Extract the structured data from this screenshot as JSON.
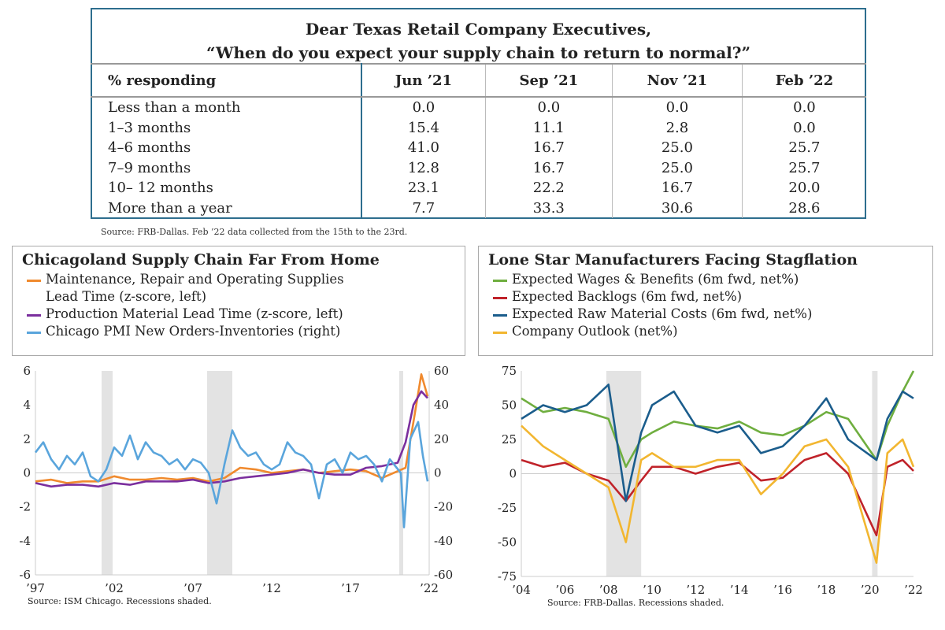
{
  "table": {
    "title_line1": "Dear Texas Retail Company Executives,",
    "title_line2": "“When do you expect your supply chain to return to normal?”",
    "header": [
      "% responding",
      "Jun ’21",
      "Sep ’21",
      "Nov ’21",
      "Feb ’22"
    ],
    "rows": [
      [
        "Less than a month",
        "0.0",
        "0.0",
        "0.0",
        "0.0"
      ],
      [
        "1–3 months",
        "15.4",
        "11.1",
        "2.8",
        "0.0"
      ],
      [
        "4–6 months",
        "41.0",
        "16.7",
        "25.0",
        "25.7"
      ],
      [
        "7–9 months",
        "12.8",
        "16.7",
        "25.0",
        "25.7"
      ],
      [
        "10– 12 months",
        "23.1",
        "22.2",
        "16.7",
        "20.0"
      ],
      [
        "More than a year",
        "7.7",
        "33.3",
        "30.6",
        "28.6"
      ]
    ],
    "source": "Source: FRB-Dallas. Feb ’22 data collected from the 15th to the 23rd."
  },
  "chart_data": [
    {
      "type": "line",
      "title": "Chicagoland Supply Chain Far From Home",
      "source": "Source: ISM Chicago. Recessions shaded.",
      "xlim": [
        1997,
        2022
      ],
      "xticks": [
        1997,
        2002,
        2007,
        2012,
        2017,
        2022
      ],
      "xtick_labels": [
        "’97",
        "’02",
        "’07",
        "’12",
        "’17",
        "’22"
      ],
      "ylim_left": [
        -6,
        6
      ],
      "yticks_left": [
        "6",
        "4",
        "2",
        "0",
        "-2",
        "-4",
        "-6"
      ],
      "ylim_right": [
        -60,
        60
      ],
      "yticks_right": [
        "60",
        "40",
        "20",
        "0",
        "-20",
        "-40",
        "-60"
      ],
      "recessions": [
        [
          2001.2,
          2001.9
        ],
        [
          2007.9,
          2009.5
        ],
        [
          2020.1,
          2020.35
        ]
      ],
      "series": [
        {
          "name": "Maintenance, Repair and Operating Supplies",
          "name2": "Lead Time (z-score, left)",
          "color": "#f08a2e",
          "axis": "left",
          "x": [
            1997,
            1998,
            1999,
            2000,
            2001,
            2002,
            2003,
            2004,
            2005,
            2006,
            2007,
            2008,
            2009,
            2010,
            2011,
            2012,
            2013,
            2014,
            2015,
            2016,
            2017,
            2018,
            2019,
            2020,
            2020.5,
            2021,
            2021.5,
            2021.9
          ],
          "y": [
            -0.5,
            -0.4,
            -0.6,
            -0.5,
            -0.5,
            -0.2,
            -0.4,
            -0.4,
            -0.3,
            -0.4,
            -0.3,
            -0.5,
            -0.3,
            0.3,
            0.2,
            0,
            0.1,
            0.2,
            0,
            0.1,
            0.2,
            0.1,
            -0.3,
            0.1,
            0.3,
            3,
            5.8,
            4.5
          ]
        },
        {
          "name": "Production Material Lead Time (z-score, left)",
          "color": "#7b2f9e",
          "axis": "left",
          "x": [
            1997,
            1998,
            1999,
            2000,
            2001,
            2002,
            2003,
            2004,
            2005,
            2006,
            2007,
            2008,
            2009,
            2010,
            2011,
            2012,
            2013,
            2014,
            2015,
            2016,
            2017,
            2018,
            2019,
            2020,
            2020.5,
            2021,
            2021.5,
            2021.9
          ],
          "y": [
            -0.6,
            -0.8,
            -0.7,
            -0.7,
            -0.8,
            -0.6,
            -0.7,
            -0.5,
            -0.5,
            -0.5,
            -0.4,
            -0.6,
            -0.5,
            -0.3,
            -0.2,
            -0.1,
            0,
            0.2,
            0,
            -0.1,
            -0.1,
            0.3,
            0.4,
            0.6,
            1.8,
            4,
            4.8,
            4.4
          ]
        },
        {
          "name": "Chicago PMI New Orders-Inventories (right)",
          "color": "#5aa5dc",
          "axis": "right",
          "x": [
            1997,
            1997.5,
            1998,
            1998.5,
            1999,
            1999.5,
            2000,
            2000.5,
            2001,
            2001.5,
            2002,
            2002.5,
            2003,
            2003.5,
            2004,
            2004.5,
            2005,
            2005.5,
            2006,
            2006.5,
            2007,
            2007.5,
            2008,
            2008.5,
            2009,
            2009.5,
            2010,
            2010.5,
            2011,
            2011.5,
            2012,
            2012.5,
            2013,
            2013.5,
            2014,
            2014.5,
            2015,
            2015.5,
            2016,
            2016.5,
            2017,
            2017.5,
            2018,
            2018.5,
            2019,
            2019.5,
            2020.2,
            2020.4,
            2020.8,
            2021.3,
            2021.6,
            2021.9
          ],
          "y": [
            12,
            18,
            8,
            2,
            10,
            5,
            12,
            -2,
            -5,
            2,
            15,
            10,
            22,
            8,
            18,
            12,
            10,
            5,
            8,
            2,
            8,
            6,
            0,
            -18,
            5,
            25,
            15,
            10,
            12,
            5,
            2,
            5,
            18,
            12,
            10,
            5,
            -15,
            5,
            8,
            0,
            12,
            8,
            10,
            5,
            -5,
            8,
            0,
            -32,
            20,
            30,
            10,
            -5
          ]
        }
      ]
    },
    {
      "type": "line",
      "title": "Lone Star Manufacturers Facing Stagflation",
      "source": "Source: FRB-Dallas. Recessions shaded.",
      "xlim": [
        2004,
        2022
      ],
      "xticks": [
        2004,
        2006,
        2008,
        2010,
        2012,
        2014,
        2016,
        2018,
        2020,
        2022
      ],
      "xtick_labels": [
        "’04",
        "’06",
        "’08",
        "’10",
        "’12",
        "’14",
        "’16",
        "’18",
        "’20",
        "’22"
      ],
      "ylim": [
        -75,
        75
      ],
      "yticks": [
        "75",
        "50",
        "25",
        "0",
        "-25",
        "-50",
        "-75"
      ],
      "recessions": [
        [
          2007.9,
          2009.5
        ],
        [
          2020.1,
          2020.35
        ]
      ],
      "series": [
        {
          "name": "Expected Wages & Benefits (6m fwd, net%)",
          "color": "#6fae3f",
          "x": [
            2004,
            2005,
            2006,
            2007,
            2008,
            2008.8,
            2009.5,
            2010,
            2011,
            2012,
            2013,
            2014,
            2015,
            2016,
            2017,
            2018,
            2019,
            2020.3,
            2020.8,
            2021.5,
            2022
          ],
          "y": [
            55,
            45,
            48,
            45,
            40,
            5,
            25,
            30,
            38,
            35,
            33,
            38,
            30,
            28,
            35,
            45,
            40,
            10,
            35,
            60,
            75
          ]
        },
        {
          "name": "Expected Backlogs (6m fwd, net%)",
          "color": "#c0232a",
          "x": [
            2004,
            2005,
            2006,
            2007,
            2008,
            2008.8,
            2009.5,
            2010,
            2011,
            2012,
            2013,
            2014,
            2015,
            2016,
            2017,
            2018,
            2019,
            2020.3,
            2020.8,
            2021.5,
            2022
          ],
          "y": [
            10,
            5,
            8,
            0,
            -5,
            -20,
            -5,
            5,
            5,
            0,
            5,
            8,
            -5,
            -3,
            10,
            15,
            0,
            -45,
            5,
            10,
            2
          ]
        },
        {
          "name": "Expected Raw Material Costs (6m fwd, net%)",
          "color": "#1b5d8c",
          "x": [
            2004,
            2005,
            2006,
            2007,
            2008,
            2008.8,
            2009.5,
            2010,
            2011,
            2012,
            2013,
            2014,
            2015,
            2016,
            2017,
            2018,
            2019,
            2020.3,
            2020.8,
            2021.5,
            2022
          ],
          "y": [
            40,
            50,
            45,
            50,
            65,
            -20,
            30,
            50,
            60,
            35,
            30,
            35,
            15,
            20,
            35,
            55,
            25,
            10,
            40,
            60,
            55
          ]
        },
        {
          "name": "Company Outlook (net%)",
          "color": "#f2b630",
          "x": [
            2004,
            2005,
            2006,
            2007,
            2008,
            2008.8,
            2009.5,
            2010,
            2011,
            2012,
            2013,
            2014,
            2015,
            2016,
            2017,
            2018,
            2019,
            2020.3,
            2020.8,
            2021.5,
            2022
          ],
          "y": [
            35,
            20,
            10,
            0,
            -10,
            -50,
            10,
            15,
            5,
            5,
            10,
            10,
            -15,
            0,
            20,
            25,
            5,
            -65,
            15,
            25,
            5
          ]
        }
      ]
    }
  ]
}
